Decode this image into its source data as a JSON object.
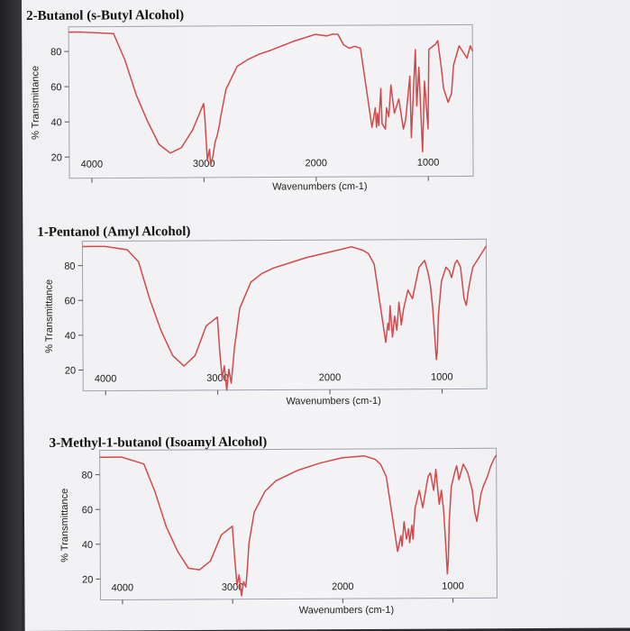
{
  "chart_data": [
    {
      "type": "line",
      "title": "2-Butanol (s-Butyl Alcohol)",
      "xlabel": "Wavenumbers (cm-1)",
      "ylabel": "% Transmittance",
      "xlim": [
        4200,
        600
      ],
      "ylim": [
        8,
        94
      ],
      "x_reversed": true,
      "xticks": [
        4000,
        3000,
        2000,
        1000
      ],
      "yticks": [
        20,
        40,
        60,
        80
      ],
      "grid": false,
      "series": [
        {
          "color": "#d2494b",
          "x": [
            4200,
            4100,
            3800,
            3700,
            3600,
            3500,
            3400,
            3300,
            3200,
            3100,
            3000,
            2990,
            2970,
            2950,
            2940,
            2920,
            2900,
            2880,
            2870,
            2860,
            2850,
            2800,
            2700,
            2600,
            2500,
            2400,
            2200,
            2000,
            1900,
            1850,
            1800,
            1750,
            1700,
            1650,
            1600,
            1500,
            1470,
            1460,
            1450,
            1440,
            1420,
            1410,
            1380,
            1370,
            1350,
            1330,
            1300,
            1260,
            1220,
            1200,
            1160,
            1150,
            1110,
            1100,
            1080,
            1050,
            1030,
            1000,
            990,
            950,
            930,
            910,
            880,
            860,
            820,
            790,
            770,
            720,
            700,
            650,
            620,
            600
          ],
          "y": [
            91,
            91,
            90,
            75,
            55,
            40,
            27,
            22,
            25,
            35,
            50,
            42,
            18,
            24,
            15,
            20,
            28,
            32,
            35,
            38,
            42,
            58,
            71,
            75,
            78,
            80,
            85,
            89,
            88,
            89,
            89,
            83,
            81,
            82,
            81,
            36,
            47,
            36,
            44,
            37,
            58,
            38,
            35,
            47,
            42,
            60,
            44,
            52,
            35,
            40,
            65,
            30,
            80,
            48,
            70,
            22,
            62,
            35,
            80,
            82,
            83,
            85,
            70,
            58,
            50,
            55,
            71,
            82,
            80,
            75,
            82,
            79
          ]
        }
      ]
    },
    {
      "type": "line",
      "title": "1-Pentanol (Amyl Alcohol)",
      "xlabel": "Wavenumbers (cm-1)",
      "ylabel": "% Transmittance",
      "xlim": [
        4200,
        600
      ],
      "ylim": [
        8,
        94
      ],
      "x_reversed": true,
      "xticks": [
        4000,
        3000,
        2000,
        1000
      ],
      "yticks": [
        20,
        40,
        60,
        80
      ],
      "grid": false,
      "series": [
        {
          "color": "#d2494b",
          "x": [
            4200,
            4100,
            4000,
            3800,
            3700,
            3600,
            3500,
            3400,
            3300,
            3200,
            3100,
            3000,
            2980,
            2960,
            2940,
            2920,
            2900,
            2880,
            2860,
            2850,
            2800,
            2700,
            2600,
            2500,
            2400,
            2200,
            2000,
            1800,
            1700,
            1650,
            1600,
            1500,
            1480,
            1470,
            1460,
            1440,
            1420,
            1400,
            1380,
            1360,
            1340,
            1300,
            1260,
            1220,
            1200,
            1150,
            1120,
            1100,
            1080,
            1060,
            1050,
            1040,
            1030,
            1000,
            960,
            930,
            910,
            880,
            860,
            830,
            800,
            780,
            760,
            740,
            720,
            700,
            650,
            620,
            600
          ],
          "y": [
            91,
            91,
            91,
            89,
            82,
            60,
            42,
            28,
            22,
            28,
            45,
            50,
            30,
            15,
            22,
            8,
            20,
            12,
            25,
            32,
            55,
            70,
            75,
            78,
            80,
            84,
            87,
            90,
            88,
            86,
            80,
            35,
            46,
            42,
            56,
            38,
            50,
            42,
            58,
            45,
            54,
            65,
            60,
            72,
            78,
            82,
            75,
            68,
            55,
            35,
            25,
            30,
            50,
            70,
            78,
            76,
            72,
            80,
            82,
            78,
            60,
            56,
            65,
            72,
            78,
            80,
            85,
            88,
            90
          ]
        }
      ]
    },
    {
      "type": "line",
      "title": "3-Methyl-1-butanol (Isoamyl Alcohol)",
      "xlabel": "Wavenumbers (cm-1)",
      "ylabel": "% Transmittance",
      "xlim": [
        4200,
        600
      ],
      "ylim": [
        8,
        94
      ],
      "x_reversed": true,
      "xticks": [
        4000,
        3000,
        2000,
        1000
      ],
      "yticks": [
        20,
        40,
        60,
        80
      ],
      "grid": false,
      "series": [
        {
          "color": "#d2494b",
          "x": [
            4200,
            4100,
            4000,
            3800,
            3700,
            3600,
            3500,
            3400,
            3300,
            3200,
            3100,
            3000,
            2980,
            2960,
            2940,
            2920,
            2900,
            2880,
            2870,
            2860,
            2850,
            2800,
            2700,
            2600,
            2500,
            2400,
            2200,
            2000,
            1800,
            1700,
            1650,
            1600,
            1500,
            1470,
            1460,
            1440,
            1420,
            1400,
            1390,
            1370,
            1360,
            1340,
            1300,
            1270,
            1220,
            1200,
            1170,
            1150,
            1120,
            1100,
            1080,
            1060,
            1050,
            1040,
            1030,
            1010,
            980,
            960,
            940,
            900,
            860,
            820,
            800,
            780,
            760,
            740,
            720,
            680,
            650,
            620,
            600
          ],
          "y": [
            90,
            90,
            90,
            86,
            70,
            50,
            36,
            26,
            25,
            30,
            45,
            50,
            32,
            16,
            22,
            10,
            18,
            15,
            22,
            30,
            40,
            58,
            70,
            76,
            79,
            82,
            86,
            89,
            90,
            88,
            85,
            78,
            35,
            44,
            38,
            52,
            42,
            48,
            40,
            50,
            42,
            60,
            70,
            60,
            78,
            80,
            70,
            82,
            62,
            70,
            58,
            35,
            22,
            30,
            52,
            72,
            80,
            84,
            76,
            85,
            80,
            70,
            58,
            52,
            60,
            68,
            72,
            78,
            84,
            88,
            90
          ]
        }
      ]
    }
  ]
}
